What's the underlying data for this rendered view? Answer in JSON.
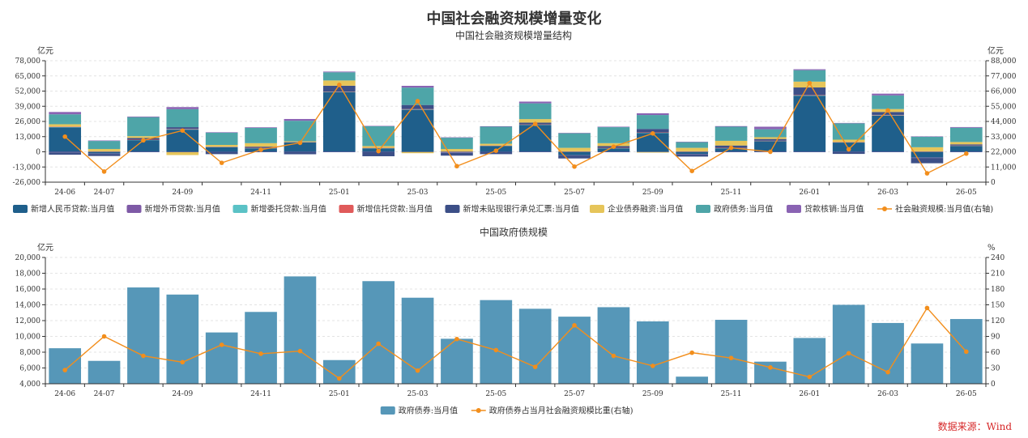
{
  "page": {
    "title": "中国社会融资规模增量变化",
    "source": "数据来源：Wind"
  },
  "colors": {
    "rmb_loans": "#1f5f8b",
    "fx_loans": "#7e5aa6",
    "entrusted": "#5bc2c6",
    "trust": "#e05a5a",
    "bankers_accept": "#3c4f87",
    "corp_bonds": "#e6c55a",
    "gov_bonds": "#4ea5a8",
    "loan_writeoff": "#8a63b3",
    "tsf_line": "#f28e1c",
    "gov_bar": "#5697b8",
    "ratio_line": "#f28e1c"
  },
  "chart_data": [
    {
      "type": "bar",
      "stacked": true,
      "title": "中国社会融资规模增量结构",
      "ylabel_left": "亿元",
      "ylabel_right": "亿元",
      "ylim": [
        -26000,
        78000
      ],
      "yticks": [
        -26000,
        -13000,
        0,
        13000,
        26000,
        39000,
        52000,
        65000,
        78000
      ],
      "ytick_labels": [
        "-26,000",
        "-13,000",
        "0",
        "13,000",
        "26,000",
        "39,000",
        "52,000",
        "65,000",
        "78,000"
      ],
      "ylim_right": [
        0,
        88000
      ],
      "yticks_right": [
        0,
        11000,
        22000,
        33000,
        44000,
        55000,
        66000,
        77000,
        88000
      ],
      "ytick_labels_right": [
        "0",
        "11,000",
        "22,000",
        "33,000",
        "44,000",
        "55,000",
        "66,000",
        "77,000",
        "88,000"
      ],
      "categories": [
        "24-06",
        "24-07",
        "24-08",
        "24-09",
        "24-10",
        "24-11",
        "24-12",
        "25-01",
        "25-02",
        "25-03",
        "25-04",
        "25-05",
        "25-06",
        "25-07",
        "25-08",
        "25-09",
        "25-10",
        "25-11",
        "25-12",
        "26-01",
        "26-02",
        "26-03",
        "26-04",
        "26-05"
      ],
      "xtick_labels": [
        "24-06",
        "24-07",
        "",
        "24-09",
        "",
        "24-11",
        "",
        "25-01",
        "",
        "25-03",
        "",
        "25-05",
        "",
        "25-07",
        "",
        "25-09",
        "",
        "25-11",
        "",
        "26-01",
        "",
        "26-03",
        "",
        "26-05"
      ],
      "grid": true,
      "legend": "bottom",
      "series": [
        {
          "name": "新增人民币贷款:当月值",
          "color_key": "rmb_loans",
          "values": [
            21000,
            -1500,
            10000,
            19000,
            4000,
            3000,
            8000,
            51000,
            3000,
            36000,
            -500,
            5000,
            23000,
            -3000,
            3000,
            16000,
            -2000,
            3000,
            9000,
            48000,
            8000,
            31000,
            -5000,
            5000
          ]
        },
        {
          "name": "新增外币贷款:当月值",
          "color_key": "fx_loans",
          "values": [
            -500,
            -300,
            -300,
            -300,
            -200,
            -300,
            -300,
            -200,
            -300,
            -200,
            -300,
            -200,
            -300,
            -200,
            -300,
            -200,
            -300,
            -200,
            -300,
            -200,
            -300,
            -200,
            -300,
            -200
          ]
        },
        {
          "name": "新增委托贷款:当月值",
          "color_key": "entrusted",
          "values": [
            300,
            200,
            200,
            300,
            200,
            200,
            300,
            300,
            200,
            300,
            200,
            200,
            300,
            200,
            200,
            300,
            200,
            200,
            300,
            300,
            200,
            300,
            200,
            200
          ]
        },
        {
          "name": "新增信托贷款:当月值",
          "color_key": "trust",
          "values": [
            300,
            200,
            200,
            300,
            200,
            200,
            200,
            300,
            200,
            300,
            200,
            200,
            200,
            200,
            200,
            300,
            200,
            200,
            200,
            300,
            200,
            300,
            200,
            200
          ]
        },
        {
          "name": "新增未贴现银行承兑汇票:当月值",
          "color_key": "bankers_accept",
          "values": [
            -2000,
            -1800,
            1500,
            1500,
            -1800,
            1000,
            -1800,
            5000,
            -3500,
            3500,
            -2500,
            -1800,
            1500,
            -2500,
            1500,
            3000,
            -1800,
            2000,
            1500,
            6500,
            -1500,
            2500,
            -4500,
            1000
          ]
        },
        {
          "name": "企业债券融资:当月值",
          "color_key": "corp_bonds",
          "values": [
            2000,
            2000,
            1500,
            -2500,
            1500,
            3000,
            500,
            4500,
            1500,
            -1000,
            2000,
            1500,
            3000,
            3000,
            2500,
            -500,
            3000,
            4000,
            1500,
            5000,
            2000,
            2500,
            3500,
            2000
          ]
        },
        {
          "name": "政府债务:当月值",
          "color_key": "gov_bonds",
          "values": [
            8500,
            6900,
            16300,
            15400,
            10500,
            13100,
            17600,
            7000,
            17000,
            14900,
            9700,
            14600,
            13500,
            12500,
            13700,
            11900,
            4900,
            12100,
            6800,
            9800,
            14000,
            11700,
            9100,
            12200
          ]
        },
        {
          "name": "贷款核销:当月值",
          "color_key": "loan_writeoff",
          "values": [
            2000,
            400,
            500,
            1800,
            400,
            500,
            1500,
            600,
            300,
            1500,
            300,
            400,
            1500,
            300,
            400,
            1500,
            300,
            500,
            2200,
            800,
            300,
            1500,
            200,
            600
          ]
        }
      ],
      "line": {
        "name": "社会融资规模:当月值(右轴)",
        "color_key": "tsf_line",
        "axis": "right",
        "values": [
          33000,
          7700,
          30300,
          37400,
          14000,
          23500,
          28500,
          70500,
          22500,
          58700,
          11600,
          22800,
          42200,
          11300,
          25700,
          35300,
          8100,
          24900,
          22000,
          71800,
          23800,
          52000,
          6400,
          20700
        ]
      }
    },
    {
      "type": "bar",
      "title": "中国政府债规模",
      "ylabel_left": "亿元",
      "ylabel_right": "%",
      "ylim": [
        4000,
        20000
      ],
      "yticks": [
        4000,
        6000,
        8000,
        10000,
        12000,
        14000,
        16000,
        18000,
        20000
      ],
      "ytick_labels": [
        "4,000",
        "6,000",
        "8,000",
        "10,000",
        "12,000",
        "14,000",
        "16,000",
        "18,000",
        "20,000"
      ],
      "ylim_right": [
        0,
        240
      ],
      "yticks_right": [
        0,
        30,
        60,
        90,
        120,
        150,
        180,
        210,
        240
      ],
      "ytick_labels_right": [
        "0",
        "30",
        "60",
        "90",
        "120",
        "150",
        "180",
        "210",
        "240"
      ],
      "categories": [
        "24-06",
        "24-07",
        "24-08",
        "24-09",
        "24-10",
        "24-11",
        "24-12",
        "25-01",
        "25-02",
        "25-03",
        "25-04",
        "25-05",
        "25-06",
        "25-07",
        "25-08",
        "25-09",
        "25-10",
        "25-11",
        "25-12",
        "26-01",
        "26-02",
        "26-03",
        "26-04",
        "26-05"
      ],
      "xtick_labels": [
        "24-06",
        "24-07",
        "",
        "24-09",
        "",
        "24-11",
        "",
        "25-01",
        "",
        "25-03",
        "",
        "25-05",
        "",
        "25-07",
        "",
        "25-09",
        "",
        "25-11",
        "",
        "26-01",
        "",
        "26-03",
        "",
        "26-05"
      ],
      "grid": true,
      "legend": "bottom",
      "series": [
        {
          "name": "政府债券:当月值",
          "color_key": "gov_bar",
          "values": [
            8500,
            6900,
            16200,
            15300,
            10500,
            13100,
            17600,
            7000,
            17000,
            14900,
            9700,
            14600,
            13500,
            12500,
            13700,
            11900,
            4900,
            12100,
            6800,
            9800,
            14000,
            11700,
            9100,
            12200
          ]
        }
      ],
      "line": {
        "name": "政府债券占当月社会融资规模比重(右轴)",
        "color_key": "ratio_line",
        "axis": "right",
        "values": [
          26,
          90,
          53,
          41,
          74,
          57,
          62,
          10,
          76,
          25,
          85,
          64,
          32,
          111,
          53,
          34,
          59,
          49,
          31,
          13,
          58,
          22,
          144,
          61
        ]
      }
    }
  ]
}
